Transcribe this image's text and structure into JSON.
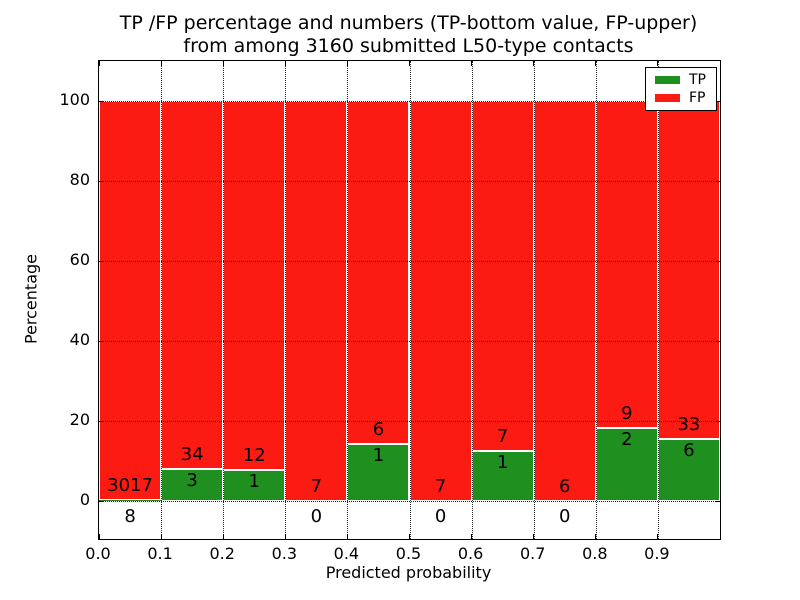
{
  "figure": {
    "title_line1": "TP /FP percentage and numbers (TP-bottom value, FP-upper)",
    "title_line2": "from among 3160 submitted L50-type contacts"
  },
  "chart_data": {
    "type": "bar",
    "stacked": true,
    "normalized": "each bin scaled to 100 percent, TP on bottom, FP on top",
    "title": "TP /FP percentage and numbers (TP-bottom value, FP-upper) from among 3160 submitted L50-type contacts",
    "xlabel": "Predicted probability",
    "ylabel": "Percentage",
    "categories": [
      "0.0-0.1",
      "0.1-0.2",
      "0.2-0.3",
      "0.3-0.4",
      "0.4-0.5",
      "0.5-0.6",
      "0.6-0.7",
      "0.7-0.8",
      "0.8-0.9",
      "0.9-1.0"
    ],
    "series": [
      {
        "name": "TP",
        "color": "#1f8f1f",
        "values": [
          8,
          3,
          1,
          0,
          1,
          0,
          1,
          0,
          2,
          6
        ]
      },
      {
        "name": "FP",
        "color": "#fb1b13",
        "values": [
          3017,
          34,
          12,
          7,
          6,
          7,
          7,
          6,
          9,
          33
        ]
      }
    ],
    "tp_percent_by_bin": [
      0.26,
      8.11,
      7.69,
      0.0,
      14.29,
      0.0,
      12.5,
      0.0,
      18.18,
      15.38
    ],
    "x_tick_labels": [
      "0.0",
      "0.1",
      "0.2",
      "0.3",
      "0.4",
      "0.5",
      "0.6",
      "0.7",
      "0.8",
      "0.9"
    ],
    "y_ticks": [
      0,
      20,
      40,
      60,
      80,
      100
    ],
    "xlim": [
      0.0,
      1.0
    ],
    "ylim": [
      -11,
      109.5
    ],
    "grid": "dotted, drawn over bars",
    "legend_position": "upper right",
    "total_submitted": 3160
  },
  "legend": {
    "items": [
      {
        "label": "TP",
        "color": "#1f8f1f"
      },
      {
        "label": "FP",
        "color": "#fb1b13"
      }
    ]
  }
}
